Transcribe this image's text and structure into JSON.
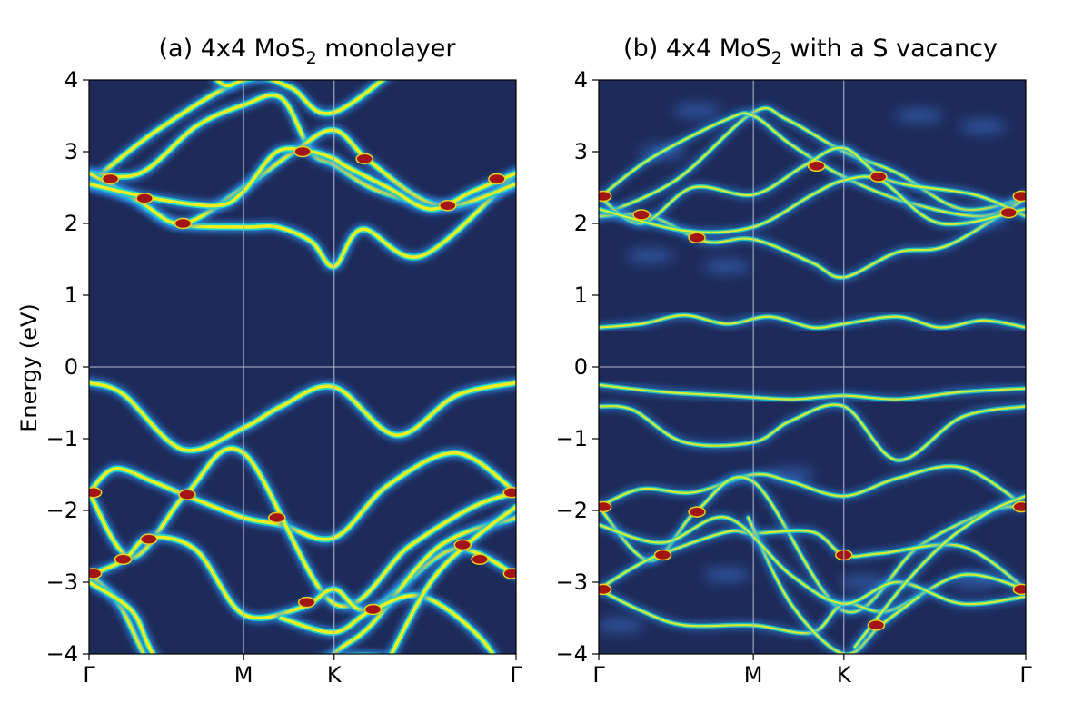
{
  "figure": {
    "ylabel": "Energy (eV)",
    "colors": {
      "background": "#1e2b5a",
      "band_outer": "#2d8fe8",
      "band_mid": "#1fd7c6",
      "band_core": "#f2ee1e",
      "crossing": "#a31414",
      "grid": "#b4bacb",
      "defect_glow": "#3f7de0"
    }
  },
  "chart_data": [
    {
      "type": "heatmap",
      "id": "a",
      "title_prefix": "(a) 4x4 MoS",
      "title_sub": "2",
      "title_suffix": " monolayer",
      "ylabel": "Energy (eV)",
      "ylim": [
        -4,
        4
      ],
      "yticks": [
        4,
        3,
        2,
        1,
        0,
        -1,
        -2,
        -3,
        -4
      ],
      "ytick_labels": [
        "4",
        "3",
        "2",
        "1",
        "0",
        "−1",
        "−2",
        "−3",
        "−4"
      ],
      "kpoints": [
        {
          "label": "Γ",
          "x": 0
        },
        {
          "label": "M",
          "x": 0.362
        },
        {
          "label": "K",
          "x": 0.574
        },
        {
          "label": "Γ",
          "x": 1
        }
      ],
      "bands": [
        {
          "x": [
            0,
            0.16,
            0.362,
            0.47,
            0.574,
            0.8,
            1
          ],
          "y": [
            2.55,
            3.3,
            4.0,
            3.9,
            3.55,
            4.5,
            5.0
          ]
        },
        {
          "x": [
            0,
            0.12,
            0.25,
            0.362,
            0.45,
            0.52,
            0.574,
            0.68,
            0.85,
            1
          ],
          "y": [
            2.7,
            2.7,
            3.35,
            3.65,
            3.75,
            3.0,
            2.82,
            2.45,
            2.25,
            2.55
          ]
        },
        {
          "x": [
            0,
            0.1,
            0.2,
            0.362,
            0.44,
            0.52,
            0.574,
            0.64,
            0.78,
            1
          ],
          "y": [
            2.55,
            2.35,
            2.0,
            1.95,
            1.95,
            1.75,
            1.4,
            1.92,
            1.55,
            2.7
          ]
        },
        {
          "x": [
            0,
            0.12,
            0.22,
            0.362,
            0.48,
            0.574,
            0.66,
            0.82,
            1
          ],
          "y": [
            2.7,
            2.3,
            2.0,
            2.5,
            3.0,
            3.3,
            2.85,
            2.25,
            2.55
          ]
        },
        {
          "x": [
            0,
            0.15,
            0.3,
            0.362,
            0.44,
            0.52,
            0.574,
            0.6,
            0.7,
            0.8,
            0.9,
            1
          ],
          "y": [
            2.55,
            2.35,
            2.25,
            2.45,
            3.0,
            3.0,
            2.9,
            2.8,
            2.5,
            2.2,
            2.45,
            2.7
          ]
        },
        {
          "x": [
            0.2,
            0.3,
            0.362,
            0.45,
            0.5
          ],
          "y": [
            5.0,
            4.0,
            4.0,
            4.2,
            4.8
          ]
        },
        {
          "x": [
            0,
            0.08,
            0.22,
            0.362,
            0.45,
            0.574,
            0.72,
            0.86,
            1
          ],
          "y": [
            -0.22,
            -0.38,
            -1.15,
            -0.85,
            -0.55,
            -0.28,
            -0.95,
            -0.4,
            -0.22
          ]
        },
        {
          "x": [
            0,
            0.06,
            0.15,
            0.23,
            0.362,
            0.45,
            0.574,
            0.7,
            0.86,
            1
          ],
          "y": [
            -1.75,
            -1.42,
            -1.6,
            -1.8,
            -2.1,
            -2.2,
            -2.38,
            -1.65,
            -1.2,
            -1.75
          ]
        },
        {
          "x": [
            0,
            0.1,
            0.23,
            0.362,
            0.574,
            0.75,
            0.9,
            1
          ],
          "y": [
            -1.75,
            -2.65,
            -1.75,
            -1.2,
            -3.3,
            -2.5,
            -1.95,
            -1.75
          ]
        },
        {
          "x": [
            0,
            0.08,
            0.14,
            0.25,
            0.362,
            0.5,
            0.574,
            0.66,
            0.85,
            1
          ],
          "y": [
            -2.9,
            -2.7,
            -2.38,
            -2.55,
            -3.45,
            -3.35,
            -3.1,
            -3.38,
            -2.55,
            -2.9
          ]
        },
        {
          "x": [
            0,
            0.07,
            0.16,
            0.3,
            0.362,
            0.45,
            0.574,
            0.66,
            0.82,
            1
          ],
          "y": [
            -2.9,
            -3.3,
            -4.3,
            -5.0,
            -5.2,
            -4.8,
            -4.0,
            -3.6,
            -2.5,
            -2.1
          ]
        },
        {
          "x": [
            0.45,
            0.574,
            0.66,
            0.78,
            0.92,
            1
          ],
          "y": [
            -3.5,
            -3.7,
            -3.4,
            -3.2,
            -3.8,
            -4.6
          ]
        },
        {
          "x": [
            0.38,
            0.5,
            0.574,
            0.7,
            0.78
          ],
          "y": [
            -4.6,
            -4.2,
            -4.05,
            -4.05,
            -4.3
          ]
        },
        {
          "x": [
            0,
            0.1,
            0.15,
            0.25,
            0.35
          ],
          "y": [
            -3.0,
            -3.4,
            -4.0,
            -4.8,
            -5.2
          ]
        },
        {
          "x": [
            0.7,
            0.8,
            0.9,
            1
          ],
          "y": [
            -4.1,
            -3.0,
            -2.4,
            -1.95
          ]
        }
      ],
      "crossings": [
        {
          "x": 0.05,
          "y": 2.62
        },
        {
          "x": 0.13,
          "y": 2.35
        },
        {
          "x": 0.22,
          "y": 2.0
        },
        {
          "x": 0.5,
          "y": 3.0
        },
        {
          "x": 0.645,
          "y": 2.9
        },
        {
          "x": 0.84,
          "y": 2.25
        },
        {
          "x": 0.955,
          "y": 2.62
        },
        {
          "x": 0.01,
          "y": -1.75
        },
        {
          "x": 0.23,
          "y": -1.78
        },
        {
          "x": 0.44,
          "y": -2.1
        },
        {
          "x": 0.14,
          "y": -2.4
        },
        {
          "x": 0.08,
          "y": -2.68
        },
        {
          "x": 0.01,
          "y": -2.88
        },
        {
          "x": 0.51,
          "y": -3.28
        },
        {
          "x": 0.665,
          "y": -3.38
        },
        {
          "x": 0.875,
          "y": -2.48
        },
        {
          "x": 0.915,
          "y": -2.68
        },
        {
          "x": 0.99,
          "y": -1.75
        },
        {
          "x": 0.99,
          "y": -2.88
        }
      ]
    },
    {
      "type": "heatmap",
      "id": "b",
      "title_prefix": "(b) 4x4 MoS",
      "title_sub": "2",
      "title_suffix": " with a S vacancy",
      "ylim": [
        -4,
        4
      ],
      "yticks": [
        4,
        3,
        2,
        1,
        0,
        -1,
        -2,
        -3,
        -4
      ],
      "ytick_labels": [
        "4",
        "3",
        "2",
        "1",
        "0",
        "−1",
        "−2",
        "−3",
        "−4"
      ],
      "kpoints": [
        {
          "label": "Γ",
          "x": 0
        },
        {
          "label": "M",
          "x": 0.362
        },
        {
          "label": "K",
          "x": 0.574
        },
        {
          "label": "Γ",
          "x": 1
        }
      ],
      "bands": [
        {
          "x": [
            0,
            0.18,
            0.362,
            0.44,
            0.574,
            0.7,
            0.85,
            1
          ],
          "y": [
            2.1,
            2.6,
            3.55,
            3.45,
            3.0,
            2.7,
            2.2,
            2.35
          ]
        },
        {
          "x": [
            0,
            0.12,
            0.3,
            0.362,
            0.45,
            0.574,
            0.72,
            0.9,
            1
          ],
          "y": [
            2.35,
            2.9,
            3.45,
            3.5,
            3.1,
            2.65,
            2.3,
            2.1,
            2.4
          ]
        },
        {
          "x": [
            0,
            0.12,
            0.25,
            0.362,
            0.5,
            0.574,
            0.7,
            0.82,
            1
          ],
          "y": [
            2.1,
            2.1,
            1.75,
            1.78,
            1.45,
            1.25,
            1.6,
            1.7,
            2.35
          ]
        },
        {
          "x": [
            0,
            0.1,
            0.22,
            0.362,
            0.48,
            0.574,
            0.68,
            0.88,
            1
          ],
          "y": [
            2.38,
            2.0,
            2.5,
            2.4,
            2.8,
            3.05,
            2.6,
            2.4,
            2.1
          ]
        },
        {
          "x": [
            0,
            0.2,
            0.362,
            0.5,
            0.574,
            0.66,
            0.8,
            1
          ],
          "y": [
            2.2,
            1.9,
            1.95,
            2.4,
            2.6,
            2.6,
            2.0,
            2.2
          ]
        },
        {
          "x": [
            0,
            0.1,
            0.2,
            0.3,
            0.4,
            0.5,
            0.574,
            0.7,
            0.8,
            0.9,
            1
          ],
          "y": [
            0.55,
            0.6,
            0.72,
            0.6,
            0.7,
            0.55,
            0.6,
            0.7,
            0.55,
            0.65,
            0.55
          ]
        },
        {
          "x": [
            0,
            0.15,
            0.3,
            0.45,
            0.574,
            0.7,
            0.85,
            1
          ],
          "y": [
            -0.25,
            -0.35,
            -0.4,
            -0.45,
            -0.4,
            -0.45,
            -0.35,
            -0.3
          ]
        },
        {
          "x": [
            0,
            0.08,
            0.2,
            0.362,
            0.45,
            0.574,
            0.7,
            0.85,
            1
          ],
          "y": [
            -0.55,
            -0.6,
            -1.05,
            -1.05,
            -0.75,
            -0.55,
            -1.3,
            -0.7,
            -0.55
          ]
        },
        {
          "x": [
            0,
            0.1,
            0.22,
            0.362,
            0.45,
            0.574,
            0.7,
            0.85,
            1
          ],
          "y": [
            -1.95,
            -1.7,
            -1.75,
            -1.5,
            -1.6,
            -1.8,
            -1.55,
            -1.4,
            -1.95
          ]
        },
        {
          "x": [
            0,
            0.12,
            0.23,
            0.362,
            0.574,
            0.75,
            0.92,
            1
          ],
          "y": [
            -1.95,
            -2.7,
            -2.0,
            -1.6,
            -3.4,
            -2.5,
            -2.0,
            -1.95
          ]
        },
        {
          "x": [
            0,
            0.08,
            0.15,
            0.3,
            0.362,
            0.5,
            0.574,
            0.66,
            0.85,
            1
          ],
          "y": [
            -3.1,
            -2.8,
            -2.6,
            -2.3,
            -2.32,
            -2.3,
            -2.62,
            -2.6,
            -2.5,
            -3.1
          ]
        },
        {
          "x": [
            0,
            0.1,
            0.2,
            0.362,
            0.5,
            0.574,
            0.68,
            0.85,
            1
          ],
          "y": [
            -3.1,
            -3.4,
            -3.6,
            -3.6,
            -3.7,
            -3.3,
            -3.4,
            -2.9,
            -3.1
          ]
        },
        {
          "x": [
            0.35,
            0.45,
            0.574,
            0.66,
            0.75
          ],
          "y": [
            -2.1,
            -3.3,
            -4.0,
            -3.6,
            -3.2
          ]
        },
        {
          "x": [
            0,
            0.15,
            0.3,
            0.45,
            0.574,
            0.7,
            0.85,
            1
          ],
          "y": [
            -2.2,
            -2.45,
            -2.1,
            -2.9,
            -3.3,
            -3.0,
            -3.3,
            -3.2
          ]
        },
        {
          "x": [
            0.6,
            0.72,
            0.82,
            0.92,
            1
          ],
          "y": [
            -3.9,
            -3.0,
            -2.4,
            -2.0,
            -1.8
          ]
        }
      ],
      "crossings": [
        {
          "x": 0.01,
          "y": 2.38
        },
        {
          "x": 0.1,
          "y": 2.12
        },
        {
          "x": 0.23,
          "y": 1.8
        },
        {
          "x": 0.51,
          "y": 2.8
        },
        {
          "x": 0.655,
          "y": 2.65
        },
        {
          "x": 0.99,
          "y": 2.38
        },
        {
          "x": 0.96,
          "y": 2.15
        },
        {
          "x": 0.01,
          "y": -1.95
        },
        {
          "x": 0.23,
          "y": -2.02
        },
        {
          "x": 0.15,
          "y": -2.62
        },
        {
          "x": 0.574,
          "y": -2.62
        },
        {
          "x": 0.01,
          "y": -3.1
        },
        {
          "x": 0.65,
          "y": -3.6
        },
        {
          "x": 0.99,
          "y": -1.95
        },
        {
          "x": 0.99,
          "y": -3.1
        }
      ],
      "glows": [
        {
          "x": 0.23,
          "y": 3.57
        },
        {
          "x": 0.9,
          "y": 3.35
        },
        {
          "x": 0.9,
          "y": 2.05
        },
        {
          "x": 0.45,
          "y": -1.5
        },
        {
          "x": 0.62,
          "y": -3.0
        },
        {
          "x": 0.88,
          "y": -3.0
        },
        {
          "x": 0.3,
          "y": -2.9
        },
        {
          "x": 0.15,
          "y": 3.0
        },
        {
          "x": 0.05,
          "y": -3.6
        },
        {
          "x": 0.3,
          "y": 1.4
        },
        {
          "x": 0.75,
          "y": 3.5
        },
        {
          "x": 0.12,
          "y": 1.55
        }
      ]
    }
  ]
}
